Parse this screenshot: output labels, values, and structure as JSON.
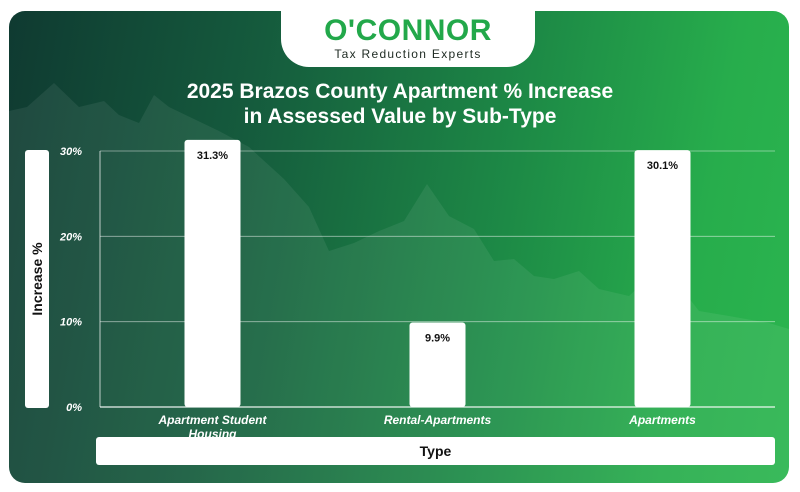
{
  "brand": {
    "name": "O'CONNOR",
    "tagline": "Tax Reduction Experts",
    "accent_color": "#22a84a"
  },
  "chart_data": {
    "type": "bar",
    "title": "2025 Brazos County Apartment % Increase in Assessed Value by Sub-Type",
    "title_lines": [
      "2025 Brazos County Apartment % Increase",
      "in Assessed Value by Sub-Type"
    ],
    "xlabel": "Type",
    "ylabel": "Increase %",
    "categories": [
      [
        "Apartment Student",
        "Housing"
      ],
      [
        "Rental-Apartments"
      ],
      [
        "Apartments"
      ]
    ],
    "values": [
      31.3,
      9.9,
      30.1
    ],
    "value_labels": [
      "31.3%",
      "9.9%",
      "30.1%"
    ],
    "ylim": [
      0,
      30
    ],
    "yticks": [
      0,
      10,
      20,
      30
    ],
    "ytick_labels": [
      "0%",
      "10%",
      "20%",
      "30%"
    ],
    "grid": true,
    "bar_color": "#ffffff"
  }
}
